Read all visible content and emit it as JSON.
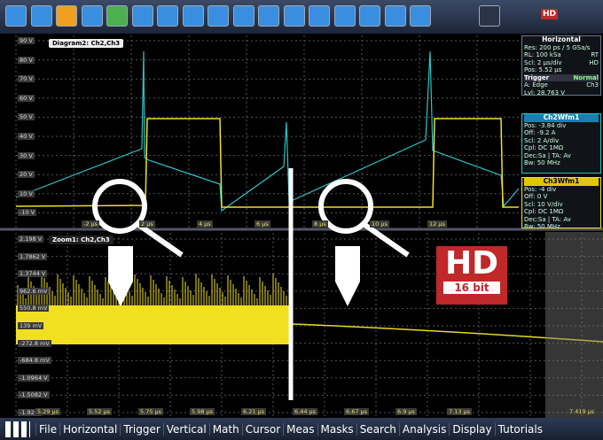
{
  "toolbar": {
    "hd_icon": "HD"
  },
  "diagram": {
    "label": "Diagram2: Ch2,Ch3",
    "y_labels": [
      "90 V",
      "80 V",
      "70 V",
      "60 V",
      "50 V",
      "40 V",
      "30 V",
      "20 V",
      "10 V",
      "-10 V"
    ],
    "x_labels": [
      "-2 µs",
      "2 µs",
      "4 µs",
      "6 µs",
      "8 µs",
      "10 µs",
      "12 µs"
    ]
  },
  "horizontal": {
    "title": "Horizontal",
    "rows": [
      [
        "Res: 200 ps / 5 GSa/s"
      ],
      [
        "RL: 100 kSa",
        "RT"
      ],
      [
        "Scl: 2 µs/div",
        "HD"
      ],
      [
        "Pos: 5.52 µs"
      ]
    ]
  },
  "trigger": {
    "title": "Trigger",
    "mode": "Normal",
    "rows": [
      [
        "A: Edge",
        "Ch3"
      ],
      [
        "Lvl: 28.763 V"
      ]
    ]
  },
  "ch2": {
    "title": "Ch2Wfm1",
    "rows": [
      "Pos: -3.84 div",
      "Off: -9.2 A",
      "Scl: 2 A/div",
      "Cpl: DC 1MΩ",
      "Dec:Sa | TA: Av",
      "Bw: 50 MHz"
    ]
  },
  "ch3": {
    "title": "Ch3Wfm1",
    "rows": [
      "Pos: -4 div",
      "Off: 0 V",
      "Scl: 10 V/div",
      "Cpl: DC 1MΩ",
      "Dec:Sa | TA: Av",
      "Bw: 50 MHz"
    ]
  },
  "zoom": {
    "label": "Zoom1: Ch2,Ch3",
    "y_labels": [
      "2.198 V",
      "1.7862 V",
      "1.3744 V",
      "962.6 mV",
      "550.8 mV",
      "139 mV",
      "-272.8 mV",
      "-684.8 mV",
      "-1.0964 V",
      "-1.5082 V",
      "-1.92 V"
    ],
    "x_labels": [
      "5.29 µs",
      "5.52 µs",
      "5.75 µs",
      "5.98 µs",
      "6.21 µs",
      "6.44 µs",
      "6.67 µs",
      "6.9 µs",
      "7.13 µs",
      "7.419 µs"
    ]
  },
  "badge": {
    "hd": "HD",
    "bits": "16 bit"
  },
  "menu": [
    "File",
    "Horizontal",
    "Trigger",
    "Vertical",
    "Math",
    "Cursor",
    "Meas",
    "Masks",
    "Search",
    "Analysis",
    "Display",
    "Tutorials"
  ]
}
